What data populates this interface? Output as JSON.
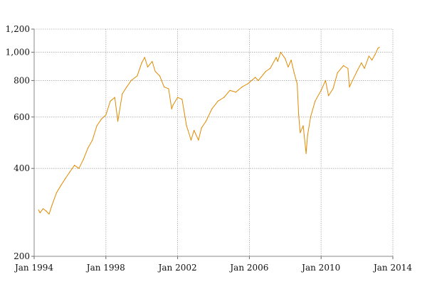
{
  "chart_data": {
    "type": "line",
    "title": "",
    "xlabel": "",
    "ylabel": "",
    "y_scale": "log",
    "ylim": [
      200,
      1200
    ],
    "xlim": [
      "1994-01-01",
      "2014-01-01"
    ],
    "grid": true,
    "legend": "none",
    "x_ticks": [
      "Jan 1994",
      "Jan 1998",
      "Jan 2002",
      "Jan 2006",
      "Jan 2010",
      "Jan 2014"
    ],
    "y_ticks": [
      "200",
      "400",
      "600",
      "800",
      "1,000",
      "1,200"
    ],
    "series": [
      {
        "color": "#e08a00",
        "points": [
          [
            "1994-04-01",
            288
          ],
          [
            "1994-05-01",
            282
          ],
          [
            "1994-07-01",
            291
          ],
          [
            "1994-09-01",
            286
          ],
          [
            "1994-11-01",
            279
          ],
          [
            "1995-01-01",
            300
          ],
          [
            "1995-04-01",
            330
          ],
          [
            "1995-07-01",
            350
          ],
          [
            "1995-10-01",
            370
          ],
          [
            "1996-01-01",
            390
          ],
          [
            "1996-04-01",
            410
          ],
          [
            "1996-07-01",
            400
          ],
          [
            "1996-10-01",
            430
          ],
          [
            "1997-01-01",
            470
          ],
          [
            "1997-04-01",
            500
          ],
          [
            "1997-07-01",
            560
          ],
          [
            "1997-10-01",
            590
          ],
          [
            "1998-01-01",
            610
          ],
          [
            "1998-04-01",
            680
          ],
          [
            "1998-07-01",
            700
          ],
          [
            "1998-09-01",
            580
          ],
          [
            "1998-12-01",
            720
          ],
          [
            "1999-03-01",
            760
          ],
          [
            "1999-06-01",
            800
          ],
          [
            "1999-10-01",
            830
          ],
          [
            "2000-01-01",
            920
          ],
          [
            "2000-03-01",
            960
          ],
          [
            "2000-05-01",
            890
          ],
          [
            "2000-08-01",
            930
          ],
          [
            "2000-10-01",
            860
          ],
          [
            "2001-01-01",
            830
          ],
          [
            "2001-04-01",
            760
          ],
          [
            "2001-07-01",
            750
          ],
          [
            "2001-09-01",
            640
          ],
          [
            "2001-10-01",
            660
          ],
          [
            "2002-01-01",
            700
          ],
          [
            "2002-04-01",
            690
          ],
          [
            "2002-07-01",
            560
          ],
          [
            "2002-08-01",
            540
          ],
          [
            "2002-10-01",
            500
          ],
          [
            "2002-12-01",
            540
          ],
          [
            "2003-03-01",
            500
          ],
          [
            "2003-05-01",
            550
          ],
          [
            "2003-08-01",
            580
          ],
          [
            "2003-12-01",
            640
          ],
          [
            "2004-04-01",
            680
          ],
          [
            "2004-08-01",
            700
          ],
          [
            "2004-12-01",
            740
          ],
          [
            "2005-04-01",
            730
          ],
          [
            "2005-08-01",
            760
          ],
          [
            "2005-12-01",
            780
          ],
          [
            "2006-05-01",
            820
          ],
          [
            "2006-07-01",
            800
          ],
          [
            "2006-12-01",
            860
          ],
          [
            "2007-03-01",
            880
          ],
          [
            "2007-07-01",
            960
          ],
          [
            "2007-08-01",
            930
          ],
          [
            "2007-10-01",
            1000
          ],
          [
            "2008-01-01",
            950
          ],
          [
            "2008-03-01",
            890
          ],
          [
            "2008-05-01",
            940
          ],
          [
            "2008-07-01",
            850
          ],
          [
            "2008-09-01",
            780
          ],
          [
            "2008-10-01",
            610
          ],
          [
            "2008-11-01",
            530
          ],
          [
            "2009-01-01",
            560
          ],
          [
            "2009-03-01",
            450
          ],
          [
            "2009-04-01",
            520
          ],
          [
            "2009-06-01",
            600
          ],
          [
            "2009-09-01",
            680
          ],
          [
            "2010-01-01",
            740
          ],
          [
            "2010-04-01",
            800
          ],
          [
            "2010-06-01",
            710
          ],
          [
            "2010-09-01",
            750
          ],
          [
            "2010-12-01",
            850
          ],
          [
            "2011-04-01",
            900
          ],
          [
            "2011-07-01",
            880
          ],
          [
            "2011-08-01",
            760
          ],
          [
            "2011-10-01",
            800
          ],
          [
            "2012-01-01",
            860
          ],
          [
            "2012-04-01",
            920
          ],
          [
            "2012-06-01",
            880
          ],
          [
            "2012-09-01",
            970
          ],
          [
            "2012-11-01",
            940
          ],
          [
            "2013-01-01",
            980
          ],
          [
            "2013-03-01",
            1030
          ],
          [
            "2013-04-01",
            1040
          ]
        ]
      }
    ]
  }
}
